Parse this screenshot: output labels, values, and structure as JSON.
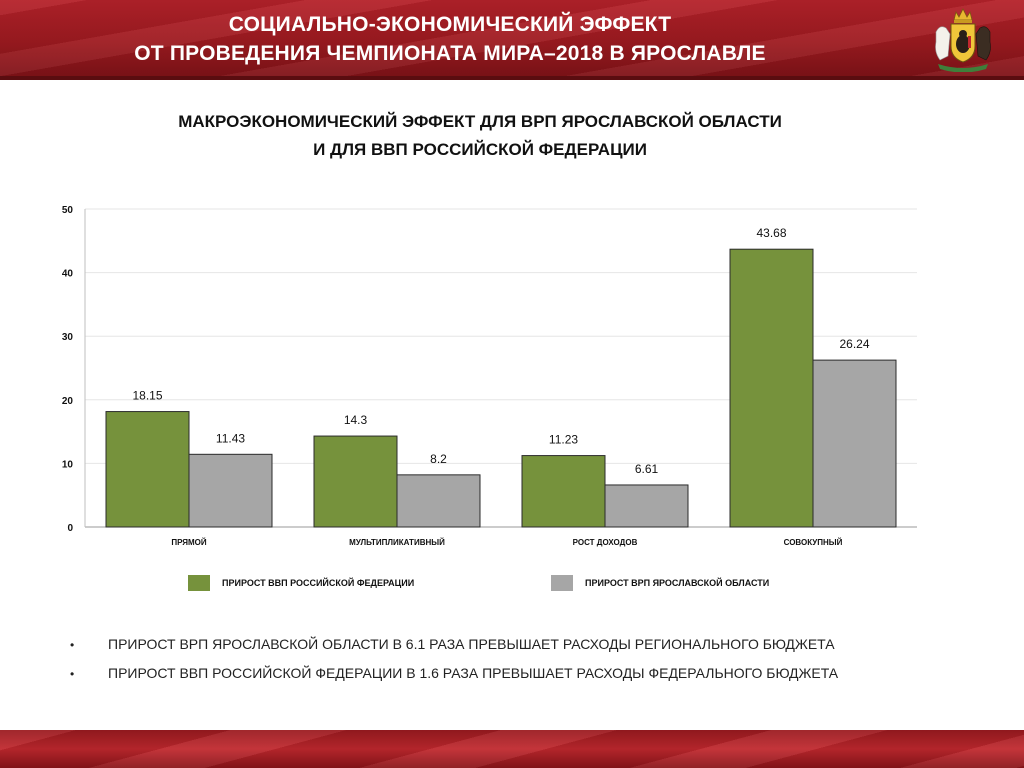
{
  "header": {
    "title_line1": "СОЦИАЛЬНО-ЭКОНОМИЧЕСКИЙ ЭФФЕКТ",
    "title_line2": "ОТ ПРОВЕДЕНИЯ ЧЕМПИОНАТА МИРА–2018 В ЯРОСЛАВЛЕ",
    "logo_icon": "yaroslavl-coat-of-arms-icon",
    "banner_color": "#a51c23"
  },
  "subtitle": {
    "line1": "МАКРОЭКОНОМИЧЕСКИЙ ЭФФЕКТ ДЛЯ ВРП ЯРОСЛАВСКОЙ ОБЛАСТИ",
    "line2": "И ДЛЯ ВВП РОССИЙСКОЙ ФЕДЕРАЦИИ"
  },
  "chart_data": {
    "type": "bar",
    "categories": [
      "ПРЯМОЙ",
      "МУЛЬТИПЛИКАТИВНЫЙ",
      "РОСТ ДОХОДОВ",
      "СОВОКУПНЫЙ"
    ],
    "series": [
      {
        "name": "ПРИРОСТ ВВП РОССИЙСКОЙ ФЕДЕРАЦИИ",
        "values": [
          18.15,
          14.3,
          11.23,
          43.68
        ],
        "color": "#76923c"
      },
      {
        "name": "ПРИРОСТ ВРП ЯРОСЛАВСКОЙ ОБЛАСТИ",
        "values": [
          11.43,
          8.2,
          6.61,
          26.24
        ],
        "color": "#a6a6a6"
      }
    ],
    "value_labels": [
      [
        "18.15",
        "14.3",
        "11.23",
        "43.68"
      ],
      [
        "11.43",
        "8.2",
        "6.61",
        "26.24"
      ]
    ],
    "ylim": [
      0,
      50
    ],
    "yticks": [
      "0",
      "10",
      "20",
      "30",
      "40",
      "50"
    ],
    "grid": true,
    "legend_position": "bottom"
  },
  "notes": [
    "ПРИРОСТ ВРП ЯРОСЛАВСКОЙ ОБЛАСТИ В 6.1 РАЗА ПРЕВЫШАЕТ РАСХОДЫ РЕГИОНАЛЬНОГО БЮДЖЕТА",
    "ПРИРОСТ ВВП РОССИЙСКОЙ ФЕДЕРАЦИИ В 1.6 РАЗА ПРЕВЫШАЕТ РАСХОДЫ ФЕДЕРАЛЬНОГО БЮДЖЕТА"
  ],
  "bullet_symbol": "•"
}
